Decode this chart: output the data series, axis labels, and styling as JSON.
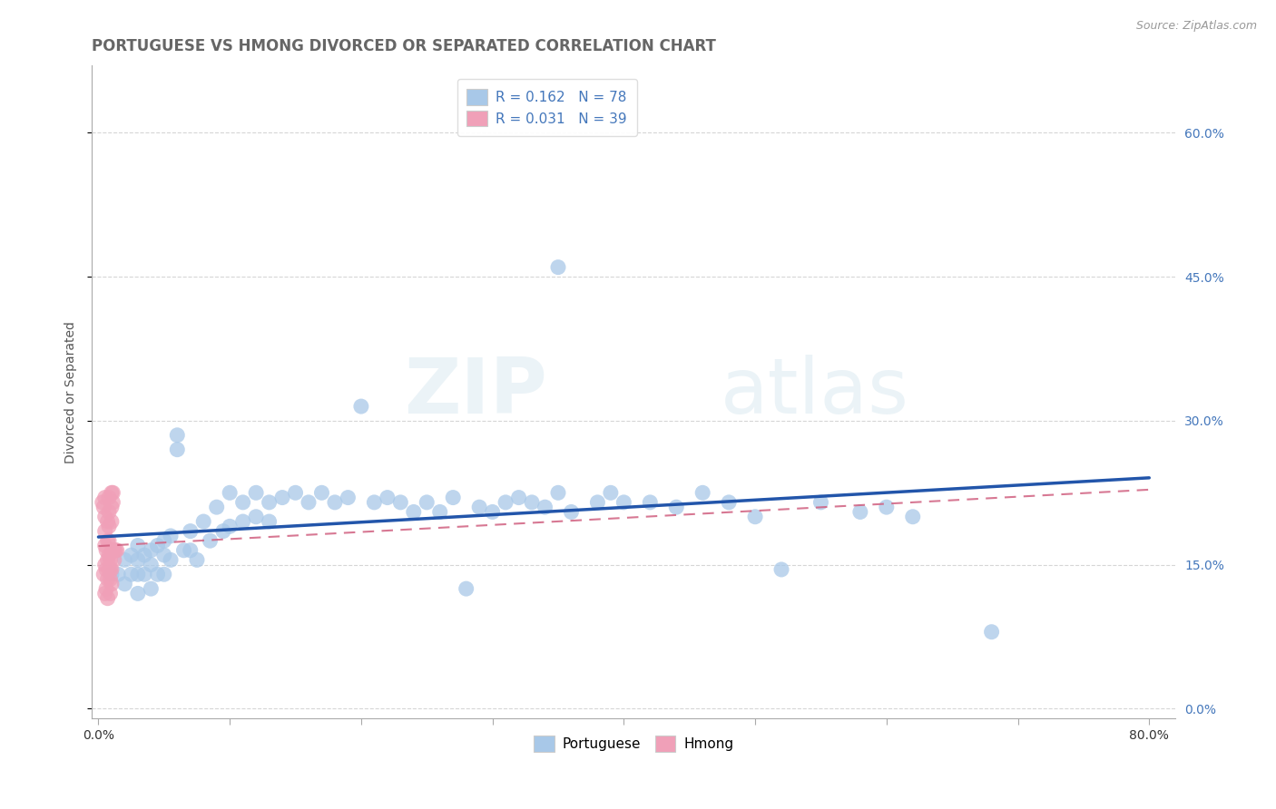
{
  "title": "PORTUGUESE VS HMONG DIVORCED OR SEPARATED CORRELATION CHART",
  "source": "Source: ZipAtlas.com",
  "ylabel": "Divorced or Separated",
  "watermark": "ZIPatlas",
  "xlim": [
    -0.005,
    0.82
  ],
  "ylim": [
    -0.01,
    0.67
  ],
  "xtick_positions": [
    0.0,
    0.1,
    0.2,
    0.3,
    0.4,
    0.5,
    0.6,
    0.7,
    0.8
  ],
  "xtick_labels": [
    "0.0%",
    "",
    "",
    "",
    "",
    "",
    "",
    "",
    "80.0%"
  ],
  "ytick_positions": [
    0.0,
    0.15,
    0.3,
    0.45,
    0.6
  ],
  "ytick_labels": [
    "0.0%",
    "15.0%",
    "30.0%",
    "45.0%",
    "60.0%"
  ],
  "blue_color": "#a8c8e8",
  "pink_color": "#f0a0b8",
  "blue_line_color": "#2255aa",
  "pink_line_color": "#d06080",
  "grid_color": "#cccccc",
  "background_color": "#ffffff",
  "title_color": "#666666",
  "source_color": "#999999",
  "tick_color": "#4477bb",
  "blue_scatter_x": [
    0.01,
    0.015,
    0.02,
    0.02,
    0.025,
    0.025,
    0.03,
    0.03,
    0.03,
    0.03,
    0.035,
    0.035,
    0.04,
    0.04,
    0.04,
    0.045,
    0.045,
    0.05,
    0.05,
    0.05,
    0.055,
    0.055,
    0.06,
    0.06,
    0.065,
    0.07,
    0.07,
    0.075,
    0.08,
    0.085,
    0.09,
    0.095,
    0.1,
    0.1,
    0.11,
    0.11,
    0.12,
    0.12,
    0.13,
    0.13,
    0.14,
    0.15,
    0.16,
    0.17,
    0.18,
    0.19,
    0.2,
    0.21,
    0.22,
    0.23,
    0.24,
    0.25,
    0.26,
    0.27,
    0.28,
    0.29,
    0.3,
    0.31,
    0.32,
    0.33,
    0.34,
    0.35,
    0.36,
    0.38,
    0.39,
    0.4,
    0.42,
    0.44,
    0.46,
    0.48,
    0.5,
    0.52,
    0.55,
    0.58,
    0.6,
    0.62,
    0.68,
    0.35
  ],
  "blue_scatter_y": [
    0.14,
    0.14,
    0.155,
    0.13,
    0.16,
    0.14,
    0.155,
    0.14,
    0.17,
    0.12,
    0.16,
    0.14,
    0.165,
    0.15,
    0.125,
    0.17,
    0.14,
    0.175,
    0.16,
    0.14,
    0.18,
    0.155,
    0.27,
    0.285,
    0.165,
    0.185,
    0.165,
    0.155,
    0.195,
    0.175,
    0.21,
    0.185,
    0.225,
    0.19,
    0.215,
    0.195,
    0.225,
    0.2,
    0.215,
    0.195,
    0.22,
    0.225,
    0.215,
    0.225,
    0.215,
    0.22,
    0.315,
    0.215,
    0.22,
    0.215,
    0.205,
    0.215,
    0.205,
    0.22,
    0.125,
    0.21,
    0.205,
    0.215,
    0.22,
    0.215,
    0.21,
    0.225,
    0.205,
    0.215,
    0.225,
    0.215,
    0.215,
    0.21,
    0.225,
    0.215,
    0.2,
    0.145,
    0.215,
    0.205,
    0.21,
    0.2,
    0.08,
    0.46
  ],
  "pink_scatter_x": [
    0.003,
    0.004,
    0.004,
    0.005,
    0.005,
    0.005,
    0.005,
    0.005,
    0.005,
    0.006,
    0.006,
    0.006,
    0.007,
    0.007,
    0.007,
    0.007,
    0.007,
    0.008,
    0.008,
    0.008,
    0.008,
    0.008,
    0.008,
    0.009,
    0.009,
    0.009,
    0.009,
    0.01,
    0.01,
    0.01,
    0.01,
    0.01,
    0.011,
    0.011,
    0.011,
    0.012,
    0.012,
    0.013,
    0.014
  ],
  "pink_scatter_y": [
    0.215,
    0.21,
    0.14,
    0.22,
    0.2,
    0.185,
    0.17,
    0.15,
    0.12,
    0.165,
    0.145,
    0.125,
    0.195,
    0.175,
    0.155,
    0.135,
    0.115,
    0.22,
    0.205,
    0.19,
    0.175,
    0.16,
    0.145,
    0.155,
    0.145,
    0.135,
    0.12,
    0.225,
    0.21,
    0.195,
    0.145,
    0.13,
    0.225,
    0.215,
    0.165,
    0.165,
    0.155,
    0.165,
    0.165
  ],
  "title_fontsize": 12,
  "axis_label_fontsize": 10,
  "tick_fontsize": 10,
  "legend_fontsize": 11,
  "source_fontsize": 9
}
